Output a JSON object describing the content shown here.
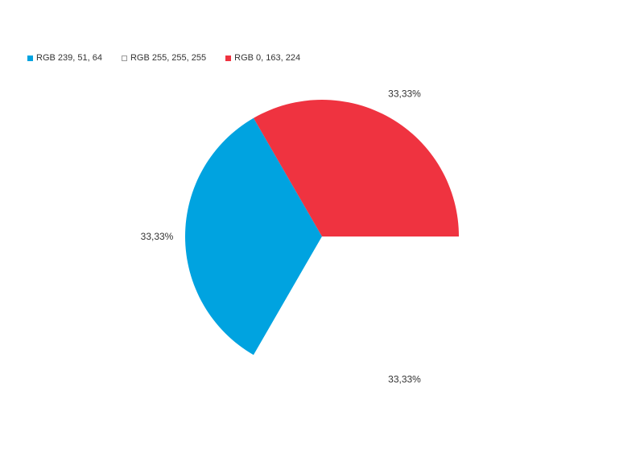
{
  "chart_data": {
    "type": "pie",
    "title": "",
    "legend": {
      "position": "top-left",
      "entries": [
        "RGB 239, 51, 64",
        "RGB 255, 255, 255",
        "RGB 0, 163, 224"
      ]
    },
    "slices": [
      {
        "label": "RGB 239, 51, 64",
        "value": 33.33,
        "display": "33,33%",
        "color": "#00A3E0"
      },
      {
        "label": "RGB 255, 255, 255",
        "value": 33.33,
        "display": "33,33%",
        "color": "#FFFFFF"
      },
      {
        "label": "RGB 0, 163, 224",
        "value": 33.33,
        "display": "33,33%",
        "color": "#EF3340"
      }
    ]
  }
}
